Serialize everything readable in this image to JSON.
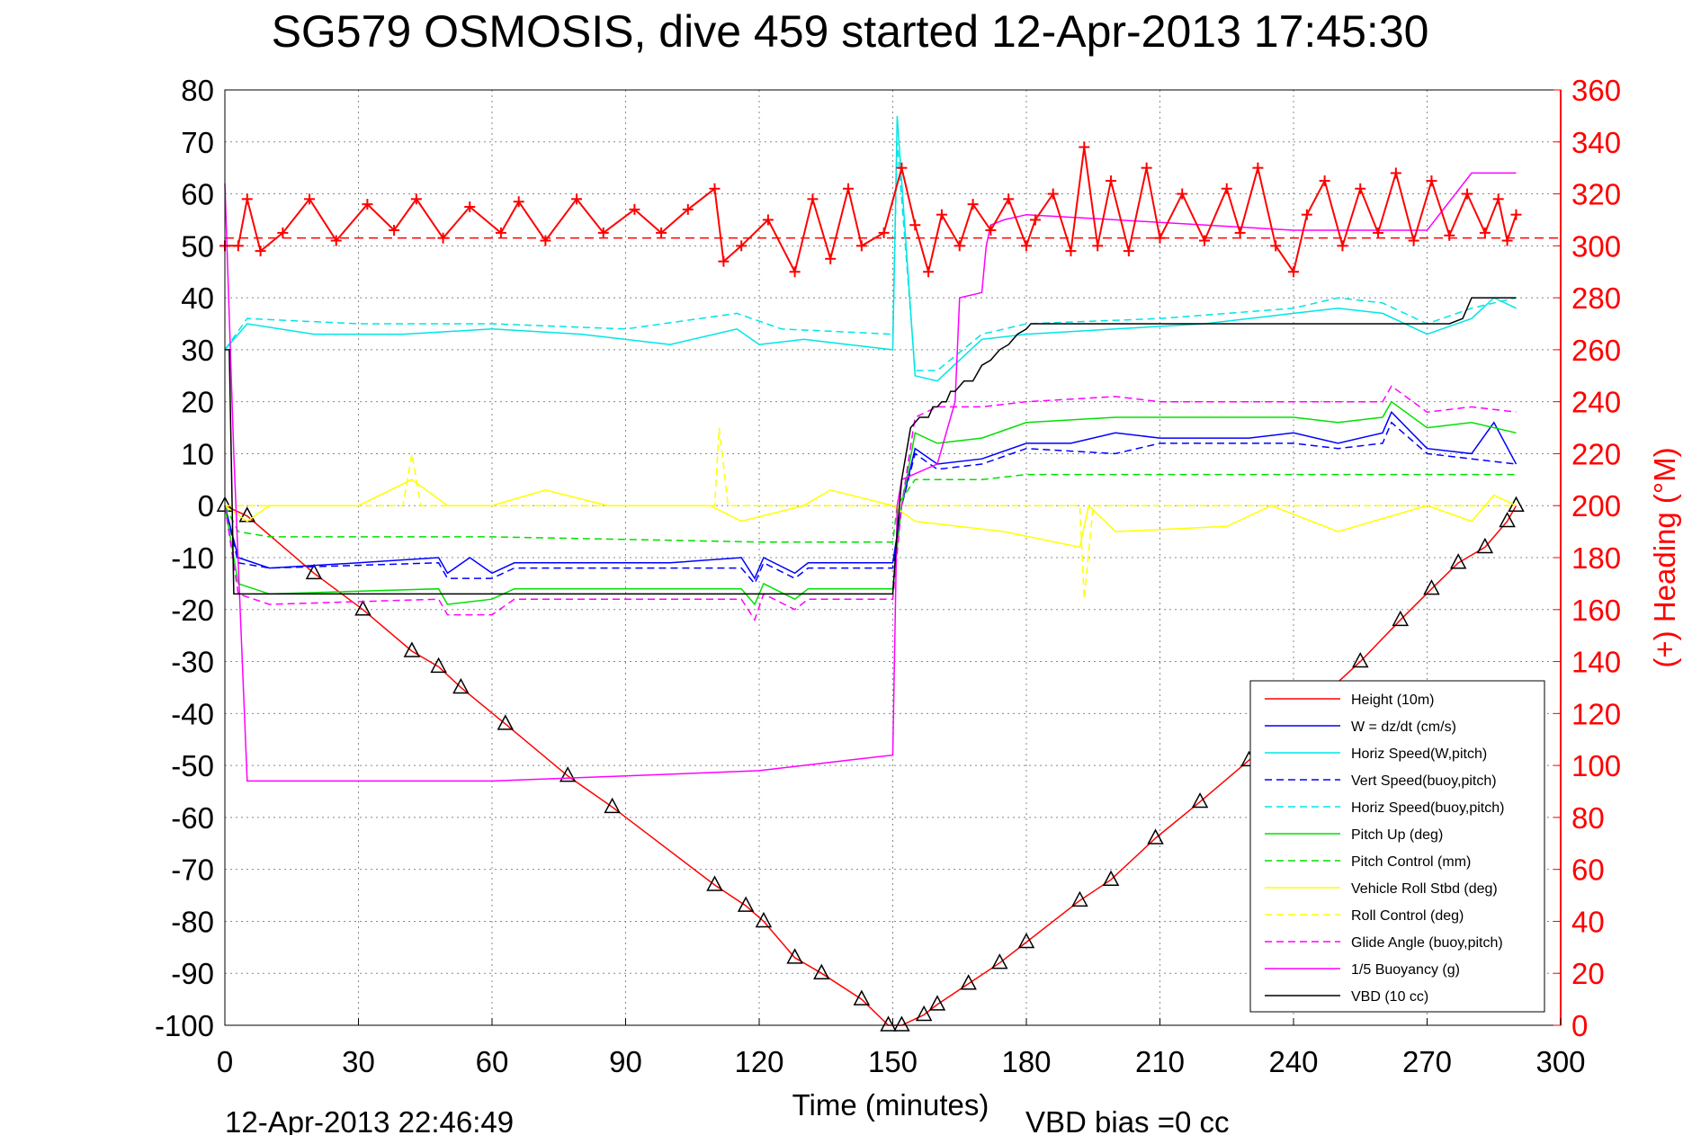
{
  "chart_data": {
    "type": "line",
    "title": "SG579 OSMOSIS, dive 459 started 12-Apr-2013 17:45:30",
    "xlabel": "Time (minutes)",
    "ylabel_right": "(+) Heading (°M)",
    "footer_timestamp": "12-Apr-2013 22:46:49",
    "footer_vbd_bias": "VBD bias =0 cc",
    "xlim": [
      0,
      300
    ],
    "ylim": [
      -100,
      80
    ],
    "ylim_right": [
      0,
      360
    ],
    "xticks": [
      "0",
      "30",
      "60",
      "90",
      "120",
      "150",
      "180",
      "210",
      "240",
      "270",
      "300"
    ],
    "yticks": [
      "80",
      "70",
      "60",
      "50",
      "40",
      "30",
      "20",
      "10",
      "0",
      "-10",
      "-20",
      "-30",
      "-40",
      "-50",
      "-60",
      "-70",
      "-80",
      "-90",
      "-100"
    ],
    "yticks_right": [
      "360",
      "340",
      "320",
      "300",
      "280",
      "260",
      "240",
      "220",
      "200",
      "180",
      "160",
      "140",
      "120",
      "100",
      "80",
      "60",
      "40",
      "20",
      "0"
    ],
    "grid": true,
    "legend_position": "bottom-right",
    "legend": [
      {
        "label": "Height (10m)",
        "color": "#ff0000",
        "dash": "solid"
      },
      {
        "label": "W = dz/dt (cm/s)",
        "color": "#0000ff",
        "dash": "solid"
      },
      {
        "label": "Horiz Speed(W,pitch)",
        "color": "#00e5e5",
        "dash": "solid"
      },
      {
        "label": "Vert Speed(buoy,pitch)",
        "color": "#0000ff",
        "dash": "dashed"
      },
      {
        "label": "Horiz Speed(buoy,pitch)",
        "color": "#00e5e5",
        "dash": "dashed"
      },
      {
        "label": "Pitch Up (deg)",
        "color": "#00e000",
        "dash": "solid"
      },
      {
        "label": "Pitch Control (mm)",
        "color": "#00e000",
        "dash": "dashed"
      },
      {
        "label": "Vehicle Roll Stbd (deg)",
        "color": "#ffff00",
        "dash": "solid"
      },
      {
        "label": "Roll Control (deg)",
        "color": "#ffff00",
        "dash": "dashed"
      },
      {
        "label": "Glide Angle (buoy,pitch)",
        "color": "#ff00ff",
        "dash": "dashed"
      },
      {
        "label": "1/5 Buoyancy (g)",
        "color": "#ff00ff",
        "dash": "solid"
      },
      {
        "label": "VBD (10 cc)",
        "color": "#000000",
        "dash": "solid"
      }
    ],
    "series": [
      {
        "name": "Height (10m)",
        "color": "#ff0000",
        "dash": "solid",
        "marker": "triangle",
        "x": [
          0,
          5,
          20,
          31,
          42,
          48,
          53,
          63,
          77,
          87,
          110,
          117,
          121,
          128,
          134,
          143,
          149,
          152,
          157,
          160,
          167,
          174,
          180,
          192,
          199,
          209,
          219,
          230,
          241,
          255,
          264,
          271,
          277,
          283,
          288,
          290
        ],
        "y": [
          0,
          -2,
          -13,
          -20,
          -28,
          -31,
          -35,
          -42,
          -52,
          -58,
          -73,
          -77,
          -80,
          -87,
          -90,
          -95,
          -100,
          -100,
          -98,
          -96,
          -92,
          -88,
          -84,
          -76,
          -72,
          -64,
          -57,
          -49,
          -41,
          -30,
          -22,
          -16,
          -11,
          -8,
          -3,
          0
        ]
      },
      {
        "name": "W = dz/dt (cm/s)",
        "color": "#0000ff",
        "dash": "solid",
        "x": [
          0,
          3,
          10,
          30,
          48,
          50,
          55,
          60,
          65,
          100,
          116,
          119,
          121,
          128,
          131,
          150,
          152,
          155,
          160,
          170,
          180,
          190,
          200,
          210,
          230,
          240,
          250,
          260,
          262,
          270,
          280,
          285,
          290
        ],
        "y": [
          0,
          -10,
          -12,
          -11,
          -10,
          -13,
          -10,
          -13,
          -11,
          -11,
          -10,
          -14,
          -10,
          -13,
          -11,
          -11,
          0,
          11,
          8,
          9,
          12,
          12,
          14,
          13,
          13,
          14,
          12,
          14,
          18,
          11,
          10,
          16,
          8
        ]
      },
      {
        "name": "Horiz Speed(W,pitch)",
        "color": "#00e5e5",
        "dash": "solid",
        "x": [
          0,
          5,
          20,
          40,
          60,
          80,
          100,
          115,
          120,
          130,
          140,
          150,
          151,
          155,
          160,
          170,
          180,
          200,
          220,
          240,
          250,
          260,
          270,
          280,
          285,
          290
        ],
        "y": [
          30,
          35,
          33,
          33,
          34,
          33,
          31,
          34,
          31,
          32,
          31,
          30,
          75,
          25,
          24,
          32,
          33,
          34,
          35,
          37,
          38,
          37,
          33,
          36,
          40,
          38
        ]
      },
      {
        "name": "Vert Speed(buoy,pitch)",
        "color": "#0000ff",
        "dash": "dashed",
        "x": [
          0,
          3,
          10,
          48,
          50,
          60,
          65,
          116,
          119,
          121,
          128,
          131,
          150,
          152,
          155,
          160,
          170,
          180,
          200,
          210,
          240,
          250,
          260,
          262,
          270,
          280,
          290
        ],
        "y": [
          0,
          -11,
          -12,
          -11,
          -14,
          -14,
          -12,
          -12,
          -15,
          -11,
          -14,
          -12,
          -12,
          0,
          10,
          7,
          8,
          11,
          10,
          12,
          12,
          11,
          12,
          16,
          10,
          9,
          8
        ]
      },
      {
        "name": "Horiz Speed(buoy,pitch)",
        "color": "#00e5e5",
        "dash": "dashed",
        "x": [
          0,
          5,
          30,
          60,
          90,
          115,
          125,
          150,
          151,
          155,
          160,
          170,
          180,
          210,
          240,
          250,
          260,
          270,
          280,
          290
        ],
        "y": [
          30,
          36,
          35,
          35,
          34,
          37,
          34,
          33,
          70,
          26,
          26,
          33,
          35,
          36,
          38,
          40,
          39,
          35,
          38,
          40
        ]
      },
      {
        "name": "Pitch Up (deg)",
        "color": "#00e000",
        "dash": "solid",
        "x": [
          0,
          3,
          10,
          48,
          50,
          60,
          65,
          116,
          119,
          121,
          128,
          131,
          150,
          152,
          155,
          160,
          170,
          180,
          200,
          210,
          240,
          250,
          260,
          262,
          270,
          280,
          290
        ],
        "y": [
          0,
          -15,
          -17,
          -16,
          -19,
          -18,
          -16,
          -16,
          -19,
          -15,
          -18,
          -16,
          -16,
          0,
          14,
          12,
          13,
          16,
          17,
          17,
          17,
          16,
          17,
          20,
          15,
          16,
          14
        ]
      },
      {
        "name": "Pitch Control (mm)",
        "color": "#00e000",
        "dash": "dashed",
        "x": [
          0,
          3,
          10,
          60,
          120,
          150,
          151,
          155,
          170,
          180,
          200,
          240,
          260,
          280,
          290
        ],
        "y": [
          0,
          -5,
          -6,
          -6,
          -7,
          -7,
          0,
          5,
          5,
          6,
          6,
          6,
          6,
          6,
          6
        ]
      },
      {
        "name": "Vehicle Roll Stbd (deg)",
        "color": "#ffff00",
        "dash": "solid",
        "x": [
          0,
          5,
          10,
          20,
          30,
          42,
          50,
          60,
          72,
          86,
          109,
          116,
          130,
          136,
          150,
          155,
          175,
          192,
          194,
          200,
          225,
          235,
          250,
          270,
          280,
          285,
          290
        ],
        "y": [
          0,
          -3,
          0,
          0,
          0,
          5,
          0,
          0,
          3,
          0,
          0,
          -3,
          0,
          3,
          0,
          -3,
          -5,
          -8,
          0,
          -5,
          -4,
          0,
          -5,
          0,
          -3,
          2,
          0
        ]
      },
      {
        "name": "Roll Control (deg)",
        "color": "#ffff00",
        "dash": "dashed",
        "x": [
          0,
          5,
          40,
          42,
          44,
          110,
          111,
          113,
          150,
          192,
          193,
          195,
          290
        ],
        "y": [
          0,
          0,
          0,
          10,
          0,
          0,
          15,
          0,
          0,
          0,
          -18,
          0,
          0
        ]
      },
      {
        "name": "Glide Angle (buoy,pitch)",
        "color": "#ff00ff",
        "dash": "dashed",
        "x": [
          0,
          3,
          10,
          48,
          50,
          60,
          65,
          116,
          119,
          121,
          128,
          131,
          150,
          152,
          155,
          160,
          170,
          180,
          200,
          210,
          240,
          250,
          260,
          262,
          270,
          280,
          290
        ],
        "y": [
          0,
          -17,
          -19,
          -18,
          -21,
          -21,
          -18,
          -18,
          -22,
          -17,
          -20,
          -18,
          -18,
          0,
          17,
          19,
          19,
          20,
          21,
          20,
          20,
          20,
          20,
          23,
          18,
          19,
          18
        ]
      },
      {
        "name": "1/5 Buoyancy (g)",
        "color": "#ff00ff",
        "dash": "solid",
        "x": [
          0,
          2,
          5,
          30,
          60,
          90,
          120,
          140,
          150,
          151,
          152,
          160,
          164,
          165,
          170,
          171,
          172,
          175,
          180,
          200,
          240,
          270,
          280,
          290
        ],
        "y": [
          62,
          10,
          -53,
          -53,
          -53,
          -52,
          -51,
          -49,
          -48,
          0,
          5,
          8,
          20,
          40,
          41,
          50,
          54,
          55,
          56,
          55,
          53,
          53,
          64,
          64
        ]
      },
      {
        "name": "VBD (10 cc)",
        "color": "#000000",
        "dash": "solid",
        "x": [
          0,
          1,
          2,
          4,
          5,
          6,
          150,
          151,
          152,
          154,
          156,
          158,
          159,
          160,
          161,
          162,
          163,
          164,
          166,
          168,
          170,
          172,
          174,
          176,
          178,
          180,
          181,
          215,
          220,
          275,
          278,
          280,
          290
        ],
        "y": [
          30,
          30,
          -17,
          -17,
          -17,
          -17,
          -17,
          -5,
          5,
          15,
          17,
          17,
          19,
          19,
          20,
          20,
          22,
          22,
          24,
          24,
          27,
          28,
          30,
          31,
          33,
          34,
          35,
          35,
          35,
          35,
          36,
          40,
          40
        ]
      },
      {
        "name": "Heading",
        "color": "#ff0000",
        "axis": "right",
        "marker": "plus",
        "x": [
          0,
          3,
          5,
          8,
          13,
          19,
          25,
          32,
          38,
          43,
          49,
          55,
          62,
          66,
          72,
          79,
          85,
          92,
          98,
          104,
          110,
          112,
          116,
          122,
          128,
          132,
          136,
          140,
          143,
          148,
          152,
          155,
          158,
          161,
          165,
          168,
          172,
          176,
          180,
          182,
          186,
          190,
          193,
          196,
          199,
          203,
          207,
          210,
          215,
          220,
          225,
          228,
          232,
          236,
          240,
          243,
          247,
          251,
          255,
          259,
          263,
          267,
          271,
          275,
          279,
          283,
          286,
          288,
          290
        ],
        "y": [
          300,
          300,
          318,
          298,
          305,
          318,
          302,
          316,
          306,
          318,
          303,
          315,
          305,
          317,
          302,
          318,
          305,
          314,
          305,
          314,
          322,
          294,
          300,
          310,
          290,
          318,
          295,
          322,
          300,
          305,
          330,
          308,
          290,
          312,
          300,
          316,
          306,
          318,
          300,
          310,
          320,
          298,
          338,
          300,
          325,
          298,
          330,
          303,
          320,
          302,
          322,
          305,
          330,
          300,
          290,
          312,
          325,
          300,
          322,
          305,
          328,
          302,
          325,
          304,
          320,
          305,
          318,
          302,
          312
        ]
      }
    ],
    "heading_reference": {
      "color": "#ff0000",
      "dash": "dashed",
      "value": 303
    }
  }
}
